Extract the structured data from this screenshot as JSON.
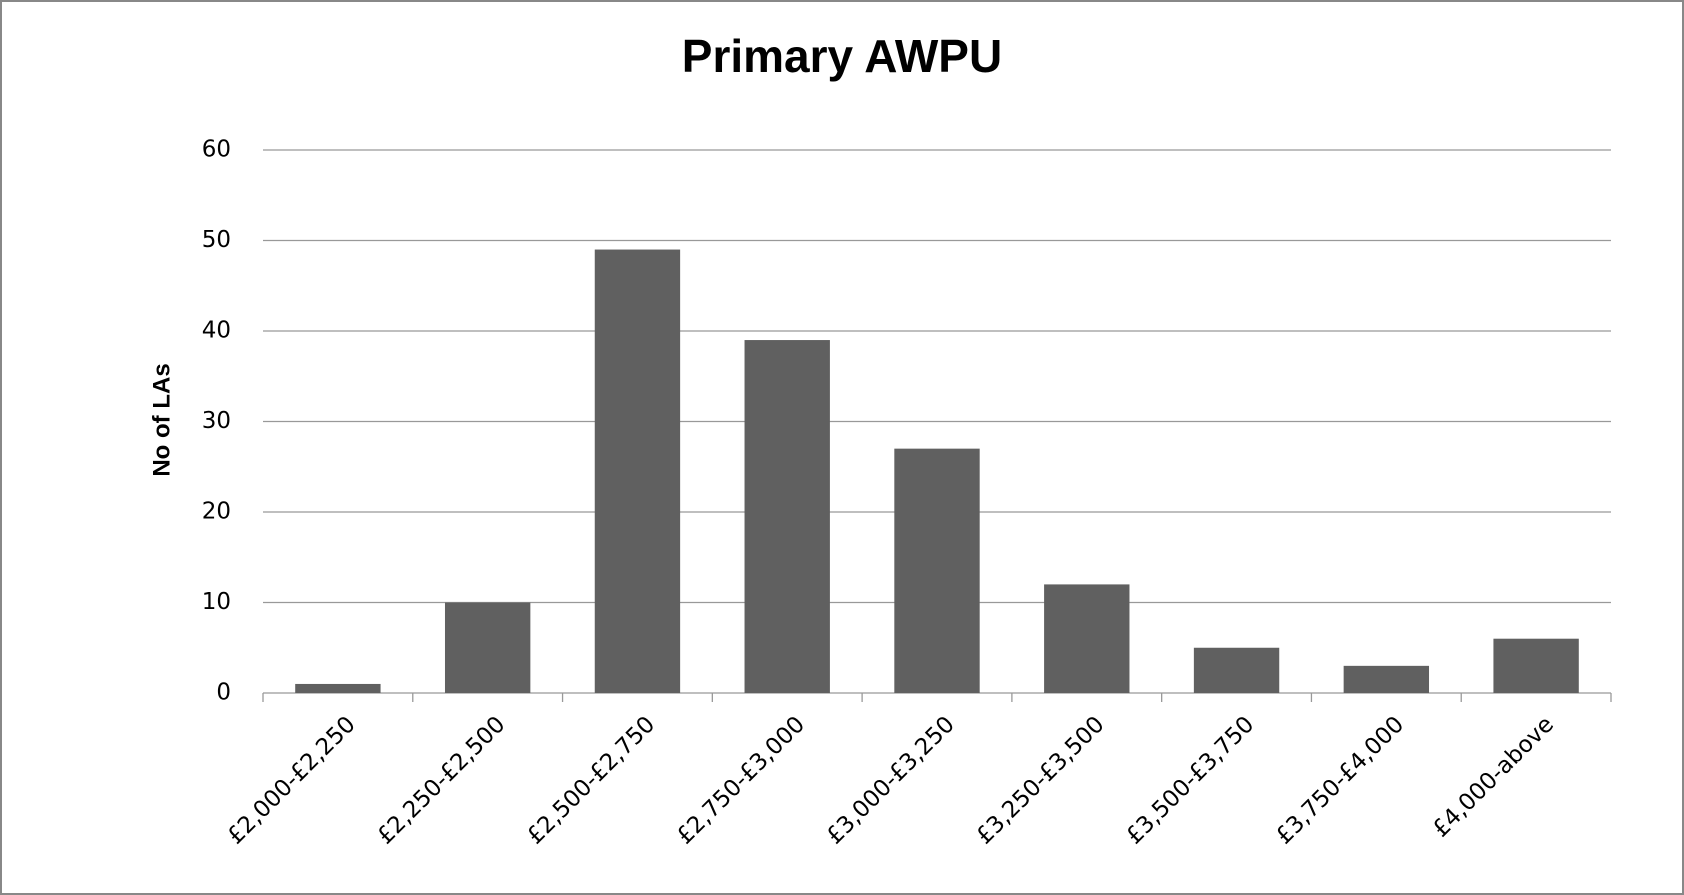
{
  "chart_data": {
    "type": "bar",
    "title": "Primary AWPU",
    "ylabel": "No of LAs",
    "categories": [
      "£2,000-£2,250",
      "£2,250-£2,500",
      "£2,500-£2,750",
      "£2,750-£3,000",
      "£3,000-£3,250",
      "£3,250-£3,500",
      "£3,500-£3,750",
      "£3,750-£4,000",
      "£4,000-above"
    ],
    "values": [
      1,
      10,
      49,
      39,
      27,
      12,
      5,
      3,
      6
    ],
    "color": "#606060",
    "ylim": [
      0,
      60
    ],
    "yticks": [
      0,
      10,
      20,
      30,
      40,
      50,
      60
    ],
    "grid": true
  }
}
